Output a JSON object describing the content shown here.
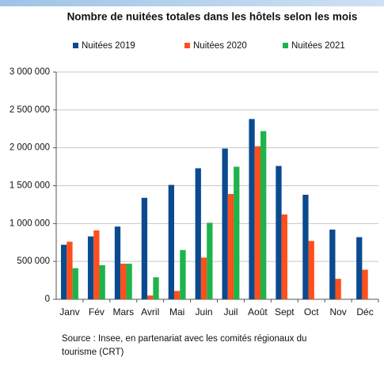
{
  "chart_data": {
    "type": "bar",
    "title": "Nombre de nuitées totales dans les hôtels selon les mois",
    "categories": [
      "Janv",
      "Fév",
      "Mars",
      "Avril",
      "Mai",
      "Juin",
      "Juil",
      "Août",
      "Sept",
      "Oct",
      "Nov",
      "Déc"
    ],
    "series": [
      {
        "name": "Nuitées 2019",
        "color": "#0b4a8f",
        "values": [
          720000,
          830000,
          960000,
          1340000,
          1510000,
          1730000,
          1990000,
          2380000,
          1760000,
          1380000,
          920000,
          820000
        ]
      },
      {
        "name": "Nuitées 2020",
        "color": "#ff4f1c",
        "values": [
          760000,
          910000,
          470000,
          50000,
          110000,
          550000,
          1390000,
          2020000,
          1120000,
          770000,
          270000,
          390000
        ]
      },
      {
        "name": "Nuitées 2021",
        "color": "#1db44b",
        "values": [
          410000,
          450000,
          470000,
          290000,
          650000,
          1010000,
          1750000,
          2220000,
          null,
          null,
          null,
          null
        ]
      }
    ],
    "ylim": [
      0,
      3000000
    ],
    "yticks": [
      0,
      {
        "value": 500000,
        "label": "500 000"
      },
      {
        "value": 1000000,
        "label": "1 000 000"
      },
      {
        "value": 1500000,
        "label": "1 500 000"
      },
      {
        "value": 2000000,
        "label": "2 000 000"
      },
      {
        "value": 2500000,
        "label": "2 500 000"
      },
      {
        "value": 3000000,
        "label": "3 000 000"
      }
    ],
    "grid": true,
    "source": [
      "Source : Insee, en partenariat avec les comités régionaux du",
      "tourisme (CRT)"
    ]
  }
}
